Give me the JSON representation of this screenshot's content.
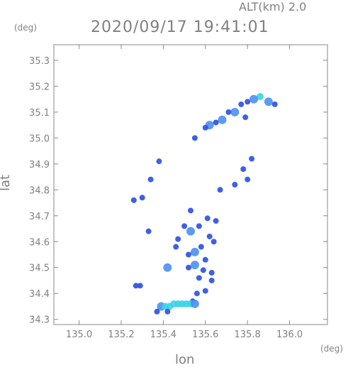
{
  "header": {
    "alt_label": "ALT(km) 2.0",
    "timestamp": "2020/09/17 19:41:01"
  },
  "axes": {
    "y_unit": "(deg)",
    "x_unit": "(deg)",
    "x_title": "lon",
    "y_title": "lat"
  },
  "colors": {
    "frame": "#8a8a8a",
    "text": "#808080",
    "echo_low": "#2a4fe0",
    "echo_mid": "#4a90f0",
    "echo_high": "#38d4e8"
  },
  "chart_data": {
    "type": "scatter",
    "title": "2020/09/17 19:41:01",
    "subtitle": "ALT(km) 2.0",
    "xlabel": "lon",
    "ylabel": "lat",
    "xlim": [
      134.88,
      136.18
    ],
    "ylim": [
      34.28,
      35.36
    ],
    "x_ticks": [
      135.0,
      135.2,
      135.4,
      135.6,
      135.8,
      136.0
    ],
    "x_tick_labels": [
      "135.0",
      "135.2",
      "135.4",
      "135.6",
      "135.8",
      "136.0"
    ],
    "y_ticks": [
      34.3,
      34.4,
      34.5,
      34.6,
      34.7,
      34.8,
      34.9,
      35.0,
      35.1,
      35.2,
      35.3
    ],
    "y_tick_labels": [
      "34.3",
      "34.4",
      "34.5",
      "34.6",
      "34.7",
      "34.8",
      "34.9",
      "35.0",
      "35.1",
      "35.2",
      "35.3"
    ],
    "grid": false,
    "echoes": [
      {
        "lon": 135.86,
        "lat": 35.16,
        "level": "high"
      },
      {
        "lon": 135.9,
        "lat": 35.14,
        "level": "mid"
      },
      {
        "lon": 135.93,
        "lat": 35.13,
        "level": "low"
      },
      {
        "lon": 135.83,
        "lat": 35.15,
        "level": "mid"
      },
      {
        "lon": 135.8,
        "lat": 35.14,
        "level": "low"
      },
      {
        "lon": 135.77,
        "lat": 35.13,
        "level": "low"
      },
      {
        "lon": 135.74,
        "lat": 35.1,
        "level": "mid"
      },
      {
        "lon": 135.71,
        "lat": 35.1,
        "level": "low"
      },
      {
        "lon": 135.68,
        "lat": 35.07,
        "level": "mid"
      },
      {
        "lon": 135.65,
        "lat": 35.06,
        "level": "low"
      },
      {
        "lon": 135.62,
        "lat": 35.05,
        "level": "mid"
      },
      {
        "lon": 135.6,
        "lat": 35.04,
        "level": "low"
      },
      {
        "lon": 135.55,
        "lat": 35.0,
        "level": "low"
      },
      {
        "lon": 135.79,
        "lat": 35.08,
        "level": "low"
      },
      {
        "lon": 135.38,
        "lat": 34.91,
        "level": "low"
      },
      {
        "lon": 135.78,
        "lat": 34.88,
        "level": "low"
      },
      {
        "lon": 135.82,
        "lat": 34.92,
        "level": "low"
      },
      {
        "lon": 135.8,
        "lat": 34.84,
        "level": "low"
      },
      {
        "lon": 135.74,
        "lat": 34.82,
        "level": "low"
      },
      {
        "lon": 135.67,
        "lat": 34.8,
        "level": "low"
      },
      {
        "lon": 135.34,
        "lat": 34.84,
        "level": "low"
      },
      {
        "lon": 135.26,
        "lat": 34.76,
        "level": "low"
      },
      {
        "lon": 135.3,
        "lat": 34.77,
        "level": "low"
      },
      {
        "lon": 135.53,
        "lat": 34.72,
        "level": "low"
      },
      {
        "lon": 135.53,
        "lat": 34.64,
        "level": "mid"
      },
      {
        "lon": 135.5,
        "lat": 34.66,
        "level": "low"
      },
      {
        "lon": 135.57,
        "lat": 34.66,
        "level": "low"
      },
      {
        "lon": 135.61,
        "lat": 34.69,
        "level": "low"
      },
      {
        "lon": 135.65,
        "lat": 34.68,
        "level": "low"
      },
      {
        "lon": 135.62,
        "lat": 34.62,
        "level": "low"
      },
      {
        "lon": 135.64,
        "lat": 34.6,
        "level": "low"
      },
      {
        "lon": 135.58,
        "lat": 34.58,
        "level": "low"
      },
      {
        "lon": 135.55,
        "lat": 34.56,
        "level": "mid"
      },
      {
        "lon": 135.52,
        "lat": 34.55,
        "level": "low"
      },
      {
        "lon": 135.6,
        "lat": 34.53,
        "level": "low"
      },
      {
        "lon": 135.55,
        "lat": 34.51,
        "level": "mid"
      },
      {
        "lon": 135.59,
        "lat": 34.49,
        "level": "low"
      },
      {
        "lon": 135.52,
        "lat": 34.5,
        "level": "low"
      },
      {
        "lon": 135.57,
        "lat": 34.46,
        "level": "low"
      },
      {
        "lon": 135.63,
        "lat": 34.48,
        "level": "low"
      },
      {
        "lon": 135.63,
        "lat": 34.45,
        "level": "low"
      },
      {
        "lon": 135.46,
        "lat": 34.58,
        "level": "low"
      },
      {
        "lon": 135.47,
        "lat": 34.61,
        "level": "low"
      },
      {
        "lon": 135.42,
        "lat": 34.5,
        "level": "mid"
      },
      {
        "lon": 135.33,
        "lat": 34.64,
        "level": "low"
      },
      {
        "lon": 135.56,
        "lat": 34.4,
        "level": "low"
      },
      {
        "lon": 135.6,
        "lat": 34.41,
        "level": "low"
      },
      {
        "lon": 135.54,
        "lat": 34.37,
        "level": "low"
      },
      {
        "lon": 135.29,
        "lat": 34.43,
        "level": "low"
      },
      {
        "lon": 135.27,
        "lat": 34.43,
        "level": "low"
      },
      {
        "lon": 135.39,
        "lat": 34.35,
        "level": "mid"
      },
      {
        "lon": 135.41,
        "lat": 34.35,
        "level": "high"
      },
      {
        "lon": 135.43,
        "lat": 34.35,
        "level": "high"
      },
      {
        "lon": 135.45,
        "lat": 34.36,
        "level": "high"
      },
      {
        "lon": 135.47,
        "lat": 34.36,
        "level": "high"
      },
      {
        "lon": 135.49,
        "lat": 34.36,
        "level": "high"
      },
      {
        "lon": 135.51,
        "lat": 34.36,
        "level": "high"
      },
      {
        "lon": 135.53,
        "lat": 34.36,
        "level": "high"
      },
      {
        "lon": 135.55,
        "lat": 34.36,
        "level": "mid"
      },
      {
        "lon": 135.42,
        "lat": 34.33,
        "level": "low"
      },
      {
        "lon": 135.37,
        "lat": 34.33,
        "level": "low"
      }
    ]
  }
}
